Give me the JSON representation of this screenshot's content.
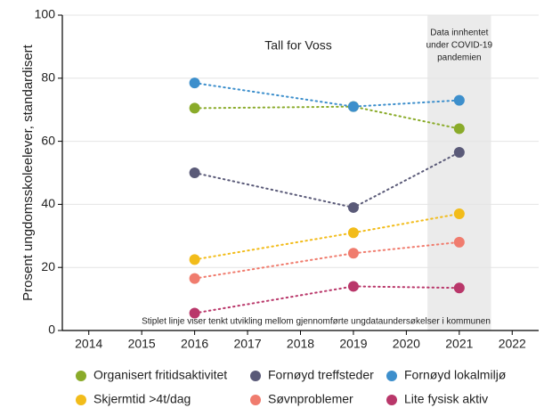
{
  "chart_data": {
    "type": "line",
    "subtitle": "Tall for Voss",
    "y_label": "Prosent ungdomsskoleelever, standardisert",
    "note": "Stiplet linje viser tenkt utvikling mellom gjennomførte ungdataundersøkelser i kommunen",
    "annotations": [
      {
        "text": [
          "Data innhentet",
          "under COVID-19",
          "pandemien"
        ],
        "x_range": [
          2020.4,
          2021.6
        ]
      }
    ],
    "x": [
      2016,
      2019,
      2021
    ],
    "xlim": [
      2013.5,
      2022.5
    ],
    "xticks": [
      2014,
      2015,
      2016,
      2017,
      2018,
      2019,
      2020,
      2021,
      2022
    ],
    "ylim": [
      0,
      100
    ],
    "yticks": [
      0,
      20,
      40,
      60,
      80,
      100
    ],
    "grid": true,
    "series": [
      {
        "name": "Organisert fritidsaktivitet",
        "color": "#8aab2a",
        "values": [
          70.5,
          71,
          64
        ]
      },
      {
        "name": "Fornøyd treffsteder",
        "color": "#5a5a78",
        "values": [
          50,
          39,
          56.5
        ]
      },
      {
        "name": "Fornøyd lokalmiljø",
        "color": "#3d8fcc",
        "values": [
          78.5,
          71,
          73
        ]
      },
      {
        "name": "Skjermtid >4t/dag",
        "color": "#f2bc1a",
        "values": [
          22.5,
          31,
          37
        ]
      },
      {
        "name": "Søvnproblemer",
        "color": "#f07c6e",
        "values": [
          16.5,
          24.5,
          28
        ]
      },
      {
        "name": "Lite fysisk aktiv",
        "color": "#b9376a",
        "values": [
          5.5,
          14,
          13.5
        ]
      }
    ]
  }
}
